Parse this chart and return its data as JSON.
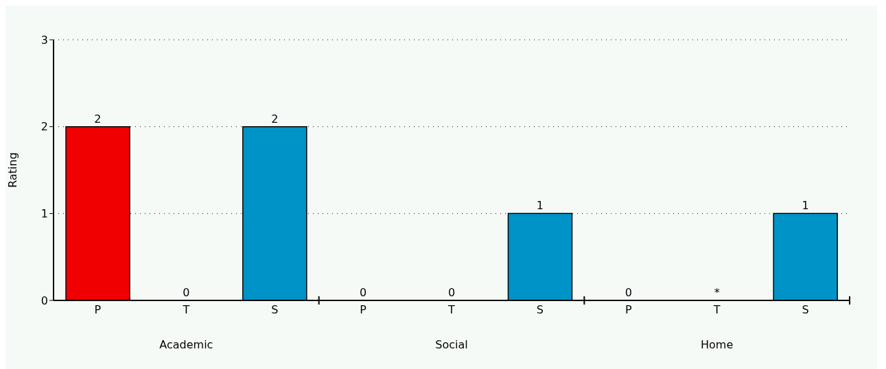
{
  "chart_data": {
    "type": "bar",
    "ylabel": "Rating",
    "categories": [
      "P",
      "T",
      "S",
      "P",
      "T",
      "S",
      "P",
      "T",
      "S"
    ],
    "values": [
      2,
      0,
      2,
      0,
      0,
      1,
      0,
      null,
      1
    ],
    "value_labels": [
      "2",
      "0",
      "2",
      "0",
      "0",
      "1",
      "0",
      "*",
      "1"
    ],
    "colors": [
      "#f00000",
      null,
      "#0093c8",
      null,
      null,
      "#0093c8",
      null,
      null,
      "#0093c8"
    ],
    "annotations": [
      "Academic",
      "Social",
      "Home"
    ],
    "ylim": [
      0,
      3
    ],
    "yticks": [
      0,
      1,
      2,
      3
    ],
    "grid": "y"
  }
}
